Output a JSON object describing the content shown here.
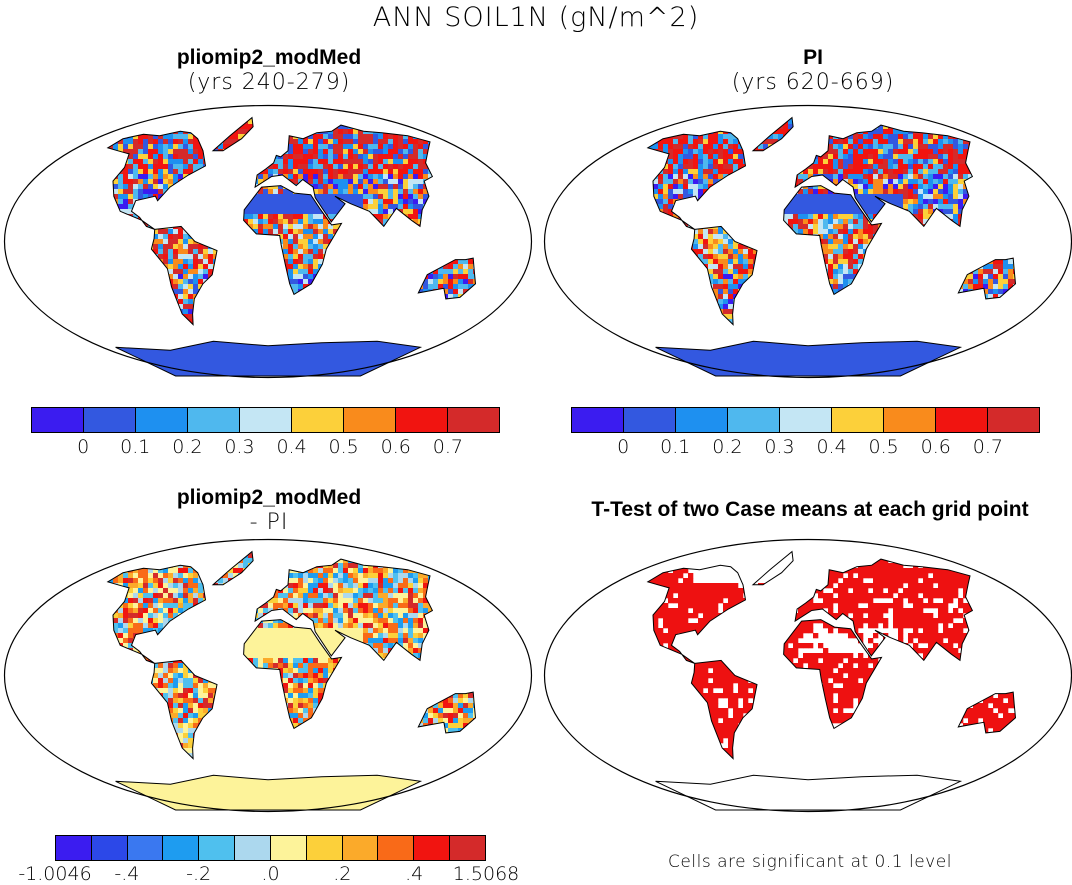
{
  "title": "ANN SOIL1N (gN/m^2)",
  "panels": [
    {
      "id": "case",
      "title": "pliomip2_modMed",
      "subtitle": "(yrs 240-279)",
      "colorbar": {
        "colors": [
          "#3b1cf0",
          "#3358e0",
          "#1e90f0",
          "#4fb8ee",
          "#c4e6f4",
          "#fcd03a",
          "#f98b1c",
          "#f11410",
          "#d42a2a"
        ],
        "labels": [
          "0",
          "0.1",
          "0.2",
          "0.3",
          "0.4",
          "0.5",
          "0.6",
          "0.7"
        ]
      }
    },
    {
      "id": "control",
      "title": "PI",
      "subtitle": "(yrs 620-669)",
      "colorbar": {
        "colors": [
          "#3b1cf0",
          "#3358e0",
          "#1e90f0",
          "#4fb8ee",
          "#c4e6f4",
          "#fcd03a",
          "#f98b1c",
          "#f11410",
          "#d42a2a"
        ],
        "labels": [
          "0",
          "0.1",
          "0.2",
          "0.3",
          "0.4",
          "0.5",
          "0.6",
          "0.7"
        ]
      }
    },
    {
      "id": "difference",
      "title": "pliomip2_modMed",
      "subtitle": "- PI",
      "colorbar": {
        "colors": [
          "#3b1cf0",
          "#2c48e8",
          "#3a78f0",
          "#1e9cf0",
          "#4fc0ee",
          "#acd8ee",
          "#fdf39a",
          "#fcd03a",
          "#fbaa2a",
          "#f96a18",
          "#f11410",
          "#d42a2a"
        ],
        "labels": [
          "-1.0046",
          "-.4",
          "-.2",
          ".0",
          ".2",
          ".4",
          "1.5068"
        ]
      }
    },
    {
      "id": "ttest",
      "title": "T-Test of two Case means at each grid point",
      "note": "Cells are significant at 0.1 level",
      "significant_color": "#ee1111"
    }
  ]
}
